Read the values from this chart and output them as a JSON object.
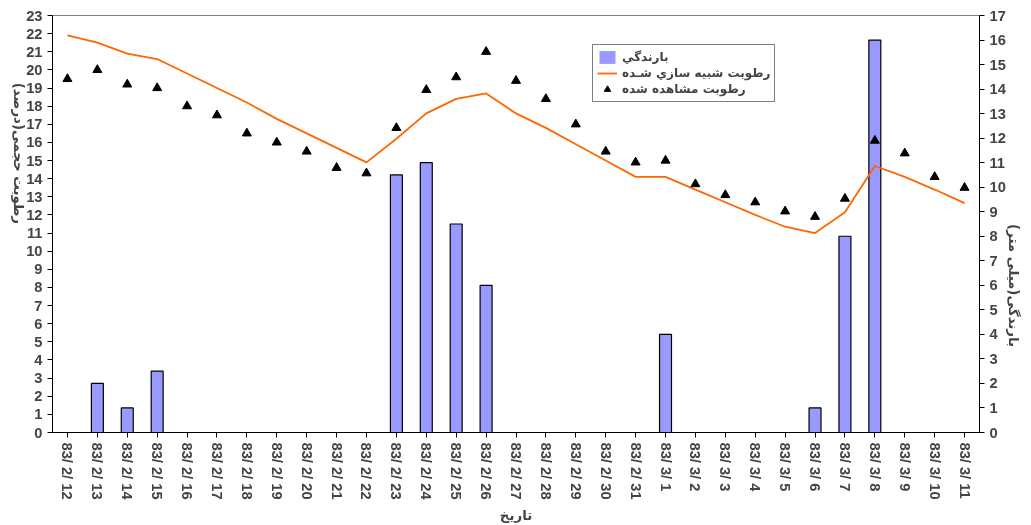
{
  "chart_data": {
    "type": "bar",
    "xlabel": "تاریخ",
    "ylabel": "رطوبت حجمی(درصد)",
    "y2label": "بارندگی(میلی متر)",
    "categories": [
      "83/ 2/ 12",
      "83/ 2/ 13",
      "83/ 2/ 14",
      "83/ 2/ 15",
      "83/ 2/ 16",
      "83/ 2/ 17",
      "83/ 2/ 18",
      "83/ 2/ 19",
      "83/ 2/ 20",
      "83/ 2/ 21",
      "83/ 2/ 22",
      "83/ 2/ 23",
      "83/ 2/ 24",
      "83/ 2/ 25",
      "83/ 2/ 26",
      "83/ 2/ 27",
      "83/ 2/ 28",
      "83/ 2/ 29",
      "83/ 2/ 30",
      "83/ 2/ 31",
      "83/ 3/ 1",
      "83/ 3/ 2",
      "83/ 3/ 3",
      "83/ 3/ 4",
      "83/ 3/ 5",
      "83/ 3/ 6",
      "83/ 3/ 7",
      "83/ 3/ 8",
      "83/ 3/ 9",
      "83/ 3/ 10",
      "83/ 3/ 11"
    ],
    "series": [
      {
        "name": "بارندگي",
        "axis": "y2",
        "color": "#9999ff",
        "values": [
          0,
          2,
          1,
          2.5,
          0,
          0,
          0,
          0,
          0,
          0,
          0,
          10.5,
          11,
          8.5,
          6,
          0,
          0,
          0,
          0,
          0,
          4,
          0,
          0,
          0,
          0,
          1,
          8,
          16,
          0,
          0,
          0
        ]
      },
      {
        "name": "رطوبت شبيه سازي شـده",
        "type": "line",
        "color": "#ff6600",
        "values": [
          21.9,
          21.5,
          20.9,
          20.6,
          19.8,
          19.0,
          18.2,
          17.3,
          16.5,
          15.7,
          14.9,
          16.2,
          17.6,
          18.4,
          18.7,
          17.6,
          16.8,
          15.9,
          15.0,
          14.1,
          14.1,
          13.4,
          12.7,
          12.0,
          11.35,
          11.0,
          12.15,
          14.7,
          14.1,
          13.4,
          12.65
        ]
      },
      {
        "name": "رطوبت مشاهده شده",
        "type": "scatter",
        "marker": "triangle",
        "color": "#000000",
        "values": [
          19.5,
          20.0,
          19.2,
          19.0,
          18.0,
          17.5,
          16.5,
          16.0,
          15.5,
          14.6,
          14.3,
          16.8,
          18.9,
          19.6,
          21.0,
          19.4,
          18.4,
          17.0,
          15.5,
          14.9,
          15.0,
          13.7,
          13.1,
          12.7,
          12.2,
          11.9,
          12.9,
          16.1,
          15.4,
          14.1,
          13.5
        ]
      }
    ],
    "ylim": [
      0,
      23
    ],
    "yticks": [
      0,
      1,
      2,
      3,
      4,
      5,
      6,
      7,
      8,
      9,
      10,
      11,
      12,
      13,
      14,
      15,
      16,
      17,
      18,
      19,
      20,
      21,
      22,
      23
    ],
    "y2lim": [
      0,
      17
    ],
    "y2ticks": [
      0,
      1,
      2,
      3,
      4,
      5,
      6,
      7,
      8,
      9,
      10,
      11,
      12,
      13,
      14,
      15,
      16,
      17
    ],
    "grid": false,
    "legend": "top"
  }
}
